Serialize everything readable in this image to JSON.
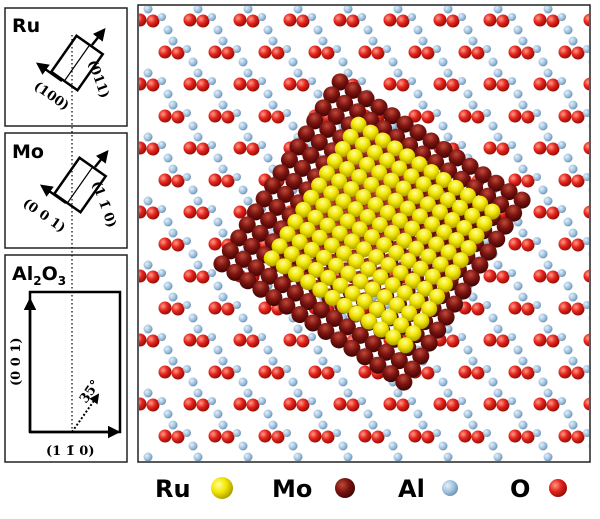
{
  "panels": [
    {
      "label": "Ru",
      "directions": [
        "(100)",
        "(011)"
      ]
    },
    {
      "label": "Mo",
      "directions": [
        "(0 0 1)",
        "(1 1̄ 0)"
      ]
    },
    {
      "label": [
        "Al",
        "2",
        "O",
        "3"
      ],
      "directions": [
        "(0 0 1)",
        "(1 1̄ 0)"
      ],
      "angle": "35°"
    }
  ],
  "legend": [
    "Ru",
    "Mo",
    "Al",
    "O"
  ]
}
